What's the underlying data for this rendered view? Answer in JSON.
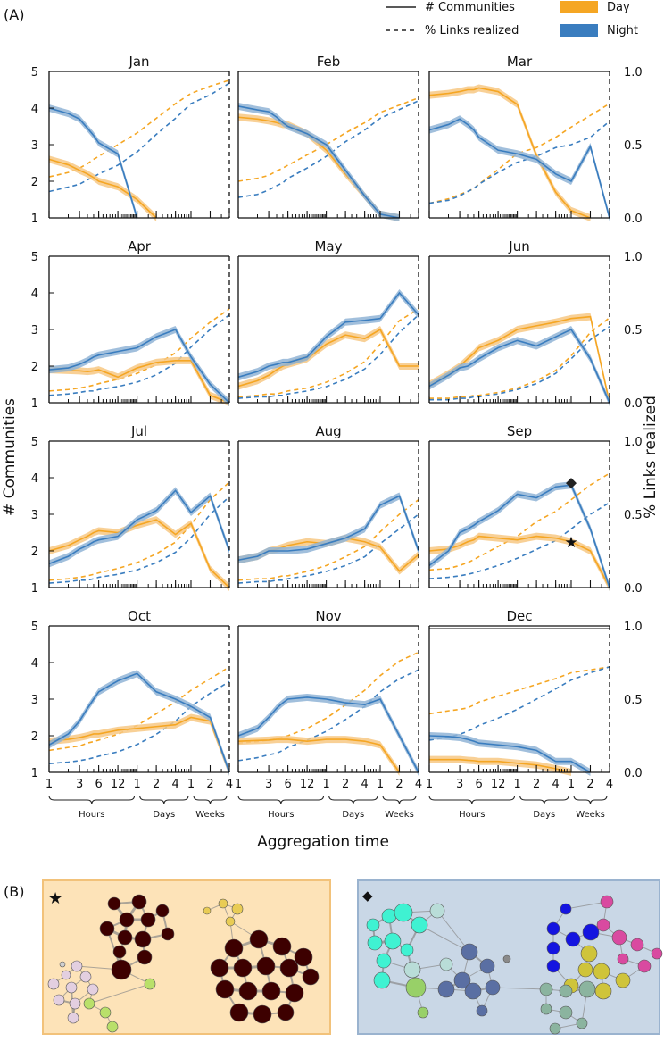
{
  "figure": {
    "panel_a_label": "(A)",
    "panel_b_label": "(B)",
    "xlabel": "Aggregation time",
    "ylabel_left": "# Communities",
    "ylabel_right": "% Links realized",
    "legend": {
      "communities": "# Communities",
      "links": "% Links realized",
      "day": "Day",
      "night": "Night"
    },
    "x_groups": [
      "Hours",
      "Days",
      "Weeks"
    ],
    "x_ticklabels": [
      "1",
      "3",
      "6",
      "12",
      "1",
      "2",
      "4",
      "1",
      "2",
      "4"
    ],
    "y_left_ticks": [
      "1",
      "2",
      "3",
      "4",
      "5"
    ],
    "y_right_ticks": [
      "0.0",
      "0.5",
      "1.0"
    ],
    "colors": {
      "day": "#f5a623",
      "night": "#3a7dbf",
      "day_band": "#f7c884",
      "night_band": "#90b4d6",
      "network_day_bg": "#fde3b8",
      "network_night_bg": "#c9d7e6"
    }
  },
  "chart_data": {
    "type": "line",
    "x_units": "hours",
    "x": [
      1,
      2,
      3,
      4,
      5,
      6,
      12,
      24,
      48,
      96,
      168,
      336,
      672
    ],
    "ylim_left": [
      1,
      5
    ],
    "ylim_right": [
      0,
      1
    ],
    "series_names": [
      "Day # communities",
      "Night # communities",
      "Day % links realized",
      "Night % links realized"
    ],
    "panels": [
      {
        "title": "Jan",
        "day_comm": [
          2.6,
          2.45,
          2.3,
          2.2,
          2.1,
          2.0,
          1.85,
          1.5,
          1.0,
          null,
          null,
          null,
          null
        ],
        "night_comm": [
          4.0,
          3.85,
          3.7,
          3.45,
          3.25,
          3.05,
          2.75,
          1.0,
          null,
          null,
          null,
          null,
          null
        ],
        "day_links": [
          0.28,
          0.31,
          0.34,
          0.37,
          0.4,
          0.42,
          0.5,
          0.58,
          0.68,
          0.78,
          0.85,
          0.9,
          0.94
        ],
        "night_links": [
          0.18,
          0.21,
          0.23,
          0.26,
          0.28,
          0.3,
          0.36,
          0.45,
          0.57,
          0.68,
          0.78,
          0.84,
          0.92
        ]
      },
      {
        "title": "Feb",
        "day_comm": [
          3.75,
          3.7,
          3.65,
          3.6,
          3.55,
          3.55,
          3.3,
          2.85,
          2.2,
          1.6,
          1.1,
          1.0,
          null
        ],
        "night_comm": [
          4.05,
          3.95,
          3.9,
          3.75,
          3.6,
          3.5,
          3.3,
          3.0,
          2.3,
          1.6,
          1.1,
          1.0,
          null
        ],
        "day_links": [
          0.25,
          0.27,
          0.29,
          0.32,
          0.34,
          0.36,
          0.43,
          0.5,
          0.58,
          0.65,
          0.72,
          0.77,
          0.82
        ],
        "night_links": [
          0.14,
          0.16,
          0.19,
          0.22,
          0.24,
          0.27,
          0.34,
          0.42,
          0.52,
          0.6,
          0.68,
          0.74,
          0.8
        ]
      },
      {
        "title": "Mar",
        "day_comm": [
          4.35,
          4.4,
          4.45,
          4.5,
          4.5,
          4.55,
          4.45,
          4.1,
          2.7,
          1.7,
          1.2,
          1.0,
          null
        ],
        "night_comm": [
          3.4,
          3.55,
          3.7,
          3.55,
          3.4,
          3.2,
          2.85,
          2.75,
          2.6,
          2.2,
          2.0,
          2.95,
          1.0
        ],
        "day_links": [
          0.1,
          0.13,
          0.16,
          0.18,
          0.2,
          0.23,
          0.33,
          0.44,
          0.48,
          0.55,
          0.62,
          0.7,
          0.78
        ],
        "night_links": [
          0.1,
          0.12,
          0.15,
          0.18,
          0.2,
          0.23,
          0.31,
          0.38,
          0.42,
          0.48,
          0.5,
          0.55,
          0.66
        ]
      },
      {
        "title": "Apr",
        "day_comm": [
          1.9,
          1.88,
          1.87,
          1.85,
          1.87,
          1.9,
          1.7,
          1.95,
          2.1,
          2.15,
          2.15,
          1.2,
          1.0
        ],
        "night_comm": [
          1.9,
          1.95,
          2.05,
          2.15,
          2.25,
          2.3,
          2.4,
          2.5,
          2.8,
          3.0,
          2.25,
          1.5,
          1.0
        ],
        "day_links": [
          0.08,
          0.09,
          0.1,
          0.11,
          0.12,
          0.13,
          0.16,
          0.2,
          0.26,
          0.34,
          0.44,
          0.55,
          0.64
        ],
        "night_links": [
          0.05,
          0.06,
          0.07,
          0.08,
          0.08,
          0.09,
          0.11,
          0.14,
          0.19,
          0.27,
          0.38,
          0.5,
          0.6
        ]
      },
      {
        "title": "May",
        "day_comm": [
          1.45,
          1.6,
          1.75,
          1.9,
          2.0,
          2.05,
          2.2,
          2.6,
          2.85,
          2.75,
          3.0,
          2.0,
          2.0
        ],
        "night_comm": [
          1.7,
          1.85,
          2.0,
          2.05,
          2.1,
          2.1,
          2.25,
          2.8,
          3.2,
          3.25,
          3.3,
          4.0,
          3.4
        ],
        "day_links": [
          0.04,
          0.05,
          0.06,
          0.06,
          0.07,
          0.08,
          0.1,
          0.14,
          0.2,
          0.28,
          0.4,
          0.56,
          0.64
        ],
        "night_links": [
          0.03,
          0.04,
          0.04,
          0.05,
          0.05,
          0.06,
          0.08,
          0.11,
          0.16,
          0.23,
          0.33,
          0.48,
          0.6
        ]
      },
      {
        "title": "Jun",
        "day_comm": [
          1.5,
          1.8,
          2.0,
          2.2,
          2.35,
          2.5,
          2.7,
          3.0,
          3.1,
          3.2,
          3.3,
          3.35,
          1.0
        ],
        "night_comm": [
          1.45,
          1.75,
          1.95,
          2.0,
          2.1,
          2.2,
          2.5,
          2.7,
          2.55,
          2.8,
          3.0,
          2.2,
          1.0
        ],
        "day_links": [
          0.03,
          0.03,
          0.04,
          0.04,
          0.05,
          0.05,
          0.07,
          0.1,
          0.15,
          0.22,
          0.32,
          0.48,
          0.58
        ],
        "night_links": [
          0.02,
          0.02,
          0.03,
          0.03,
          0.04,
          0.04,
          0.06,
          0.09,
          0.13,
          0.2,
          0.3,
          0.43,
          0.52
        ]
      },
      {
        "title": "Jul",
        "day_comm": [
          2.0,
          2.15,
          2.3,
          2.4,
          2.5,
          2.55,
          2.5,
          2.7,
          2.85,
          2.45,
          2.75,
          1.5,
          1.0
        ],
        "night_comm": [
          1.65,
          1.85,
          2.05,
          2.15,
          2.25,
          2.3,
          2.4,
          2.85,
          3.1,
          3.65,
          3.05,
          3.5,
          2.0
        ],
        "day_links": [
          0.05,
          0.06,
          0.07,
          0.08,
          0.09,
          0.1,
          0.13,
          0.17,
          0.23,
          0.31,
          0.43,
          0.6,
          0.72
        ],
        "night_links": [
          0.03,
          0.04,
          0.05,
          0.05,
          0.06,
          0.07,
          0.09,
          0.12,
          0.17,
          0.24,
          0.34,
          0.5,
          0.62
        ]
      },
      {
        "title": "Aug",
        "day_comm": [
          1.75,
          1.85,
          2.0,
          2.05,
          2.1,
          2.15,
          2.25,
          2.2,
          2.35,
          2.25,
          2.1,
          1.45,
          1.9
        ],
        "night_comm": [
          1.75,
          1.85,
          2.0,
          2.0,
          2.0,
          2.0,
          2.05,
          2.2,
          2.35,
          2.6,
          3.25,
          3.5,
          2.0
        ],
        "day_links": [
          0.05,
          0.06,
          0.06,
          0.07,
          0.08,
          0.08,
          0.11,
          0.15,
          0.21,
          0.28,
          0.38,
          0.5,
          0.6
        ],
        "night_links": [
          0.03,
          0.04,
          0.04,
          0.05,
          0.05,
          0.06,
          0.08,
          0.11,
          0.15,
          0.21,
          0.3,
          0.4,
          0.5
        ]
      },
      {
        "title": "Sep",
        "day_comm": [
          2.0,
          2.05,
          2.15,
          2.25,
          2.3,
          2.4,
          2.35,
          2.3,
          2.4,
          2.35,
          2.25,
          2.0,
          1.0
        ],
        "night_comm": [
          1.6,
          2.0,
          2.5,
          2.6,
          2.7,
          2.8,
          3.1,
          3.55,
          3.45,
          3.75,
          3.8,
          2.6,
          1.0
        ],
        "day_links": [
          0.12,
          0.13,
          0.15,
          0.17,
          0.19,
          0.21,
          0.28,
          0.35,
          0.45,
          0.52,
          0.6,
          0.7,
          0.78
        ],
        "night_links": [
          0.06,
          0.07,
          0.08,
          0.09,
          0.1,
          0.11,
          0.15,
          0.2,
          0.26,
          0.32,
          0.4,
          0.5,
          0.58
        ],
        "markers": [
          {
            "shape": "diamond",
            "x": 168,
            "y": 3.85
          },
          {
            "shape": "star",
            "x": 168,
            "y": 2.25
          }
        ]
      },
      {
        "title": "Oct",
        "day_comm": [
          1.85,
          1.9,
          1.95,
          2.0,
          2.05,
          2.05,
          2.15,
          2.2,
          2.25,
          2.3,
          2.5,
          2.4,
          1.0
        ],
        "night_comm": [
          1.75,
          2.05,
          2.4,
          2.75,
          3.0,
          3.2,
          3.5,
          3.7,
          3.2,
          3.0,
          2.8,
          2.5,
          1.0
        ],
        "day_links": [
          0.15,
          0.17,
          0.18,
          0.2,
          0.21,
          0.22,
          0.26,
          0.32,
          0.4,
          0.48,
          0.56,
          0.64,
          0.72
        ],
        "night_links": [
          0.06,
          0.07,
          0.08,
          0.09,
          0.1,
          0.11,
          0.14,
          0.19,
          0.26,
          0.35,
          0.45,
          0.54,
          0.62
        ]
      },
      {
        "title": "Nov",
        "day_comm": [
          1.85,
          1.87,
          1.88,
          1.9,
          1.9,
          1.9,
          1.85,
          1.9,
          1.9,
          1.85,
          1.75,
          1.0,
          null
        ],
        "night_comm": [
          2.0,
          2.2,
          2.5,
          2.75,
          2.9,
          3.0,
          3.05,
          3.0,
          2.9,
          2.85,
          3.0,
          2.0,
          1.0
        ],
        "day_links": [
          0.2,
          0.21,
          0.22,
          0.23,
          0.24,
          0.25,
          0.3,
          0.37,
          0.46,
          0.56,
          0.66,
          0.76,
          0.82
        ],
        "night_links": [
          0.08,
          0.1,
          0.12,
          0.13,
          0.15,
          0.17,
          0.22,
          0.28,
          0.36,
          0.45,
          0.55,
          0.64,
          0.7
        ]
      },
      {
        "title": "Dec",
        "day_comm": [
          1.35,
          1.35,
          1.35,
          1.33,
          1.32,
          1.3,
          1.3,
          1.25,
          1.2,
          1.1,
          1.0,
          null,
          null
        ],
        "night_comm": [
          2.0,
          1.98,
          1.95,
          1.9,
          1.85,
          1.8,
          1.75,
          1.7,
          1.6,
          1.3,
          1.3,
          1.0,
          null
        ],
        "day_links": [
          0.4,
          0.42,
          0.43,
          0.44,
          0.46,
          0.48,
          0.52,
          0.56,
          0.6,
          0.64,
          0.68,
          0.7,
          0.72
        ],
        "night_links": [
          0.22,
          0.24,
          0.26,
          0.28,
          0.3,
          0.32,
          0.37,
          0.43,
          0.5,
          0.57,
          0.63,
          0.68,
          0.72
        ],
        "note": "right axis line at 1.0 drawn double"
      }
    ]
  }
}
